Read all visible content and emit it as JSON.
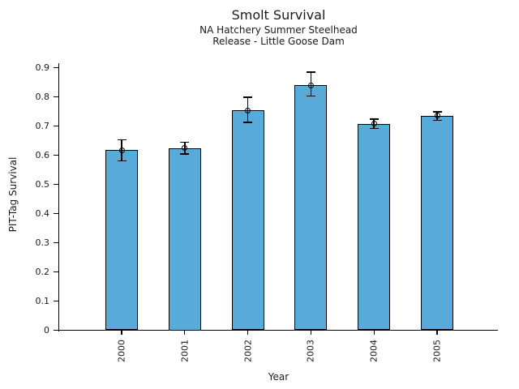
{
  "chart_data": {
    "type": "bar",
    "title": "Smolt Survival",
    "subtitle1": "NA Hatchery Summer Steelhead",
    "subtitle2": "Release - Little Goose Dam",
    "xlabel": "Year",
    "ylabel": "PIT-Tag Survival",
    "categories": [
      "2000",
      "2001",
      "2002",
      "2003",
      "2004",
      "2005"
    ],
    "values": [
      0.618,
      0.625,
      0.754,
      0.84,
      0.707,
      0.736
    ],
    "error_low": [
      0.581,
      0.604,
      0.712,
      0.803,
      0.692,
      0.72
    ],
    "error_high": [
      0.653,
      0.644,
      0.799,
      0.884,
      0.723,
      0.748
    ],
    "marker": "open-circle",
    "ylim": [
      0,
      0.9
    ],
    "yticks": [
      0,
      0.1,
      0.2,
      0.3,
      0.4,
      0.5,
      0.6,
      0.7,
      0.8,
      0.9
    ],
    "ytick_labels": [
      "0",
      "0.1",
      "0.2",
      "0.3",
      "0.4",
      "0.5",
      "0.6",
      "0.7",
      "0.8",
      "0.9"
    ],
    "bar_color": "#58ABD8",
    "bar_edge_color": "#000000",
    "error_color": "#000000",
    "text_color": "#1a1a1a",
    "grid": false,
    "legend": false
  }
}
